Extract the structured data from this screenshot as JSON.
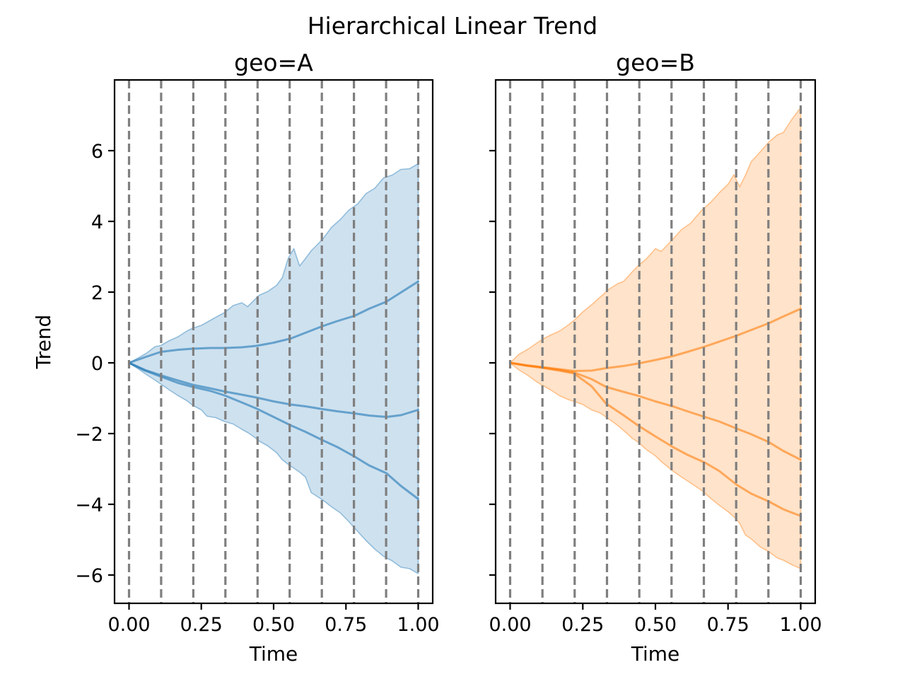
{
  "figure": {
    "title": "Hierarchical Linear Trend",
    "background": "#ffffff"
  },
  "axes": {
    "xlabel": "Time",
    "ylabel": "Trend",
    "x_tick_labels": [
      "0.00",
      "0.25",
      "0.50",
      "0.75",
      "1.00"
    ],
    "x_tick_values": [
      0,
      0.25,
      0.5,
      0.75,
      1
    ],
    "y_tick_labels": [
      "6",
      "4",
      "2",
      "0",
      "−2",
      "−4",
      "−6"
    ],
    "y_tick_values": [
      6,
      4,
      2,
      0,
      -2,
      -4,
      -6
    ],
    "xlim": [
      -0.05,
      1.05
    ],
    "ylim": [
      -6.8,
      8.0
    ],
    "changepoints": [
      0,
      0.1111,
      0.2222,
      0.3333,
      0.4444,
      0.5556,
      0.6667,
      0.7778,
      0.8889,
      1.0
    ],
    "grid_on": true,
    "grid_style": "dashed",
    "grid_color": "#7f7f7f",
    "spine_color": "#000000",
    "text_color": "#000000",
    "legend": "none"
  },
  "chart_data": [
    {
      "type": "area+line",
      "geo": "a",
      "title": "geo=A",
      "color": "#1f77b4",
      "fill_alpha": 0.22,
      "line_alpha": 0.6,
      "band": {
        "x": [
          0,
          0.03,
          0.06,
          0.09,
          0.11,
          0.14,
          0.17,
          0.2,
          0.22,
          0.25,
          0.27,
          0.3,
          0.33,
          0.36,
          0.39,
          0.41,
          0.43,
          0.45,
          0.48,
          0.51,
          0.53,
          0.55,
          0.57,
          0.59,
          0.61,
          0.63,
          0.67,
          0.7,
          0.73,
          0.76,
          0.79,
          0.82,
          0.85,
          0.88,
          0.91,
          0.94,
          0.97,
          1.0
        ],
        "upper": [
          0,
          0.13,
          0.27,
          0.46,
          0.49,
          0.63,
          0.74,
          0.9,
          0.98,
          1.06,
          1.15,
          1.29,
          1.42,
          1.62,
          1.7,
          1.59,
          1.75,
          1.91,
          2.02,
          2.19,
          2.41,
          2.95,
          3.23,
          2.74,
          2.95,
          3.17,
          3.5,
          3.83,
          4.05,
          4.32,
          4.49,
          4.79,
          4.94,
          5.23,
          5.31,
          5.47,
          5.49,
          5.63
        ],
        "lower": [
          0,
          -0.16,
          -0.33,
          -0.49,
          -0.6,
          -0.77,
          -0.93,
          -1.07,
          -1.2,
          -1.33,
          -1.51,
          -1.55,
          -1.66,
          -1.73,
          -1.88,
          -1.97,
          -2.08,
          -2.21,
          -2.35,
          -2.54,
          -2.74,
          -2.87,
          -2.98,
          -3.09,
          -3.23,
          -3.67,
          -3.88,
          -4.07,
          -4.24,
          -4.49,
          -4.76,
          -5.03,
          -5.27,
          -5.47,
          -5.6,
          -5.78,
          -5.82,
          -5.96
        ]
      },
      "lines": [
        {
          "name": "trend-draw-1",
          "x": [
            0,
            0.055,
            0.11,
            0.17,
            0.22,
            0.28,
            0.33,
            0.39,
            0.44,
            0.5,
            0.56,
            0.61,
            0.67,
            0.72,
            0.78,
            0.83,
            0.89,
            0.94,
            1.0
          ],
          "y": [
            0,
            0.16,
            0.31,
            0.37,
            0.4,
            0.42,
            0.42,
            0.44,
            0.48,
            0.57,
            0.69,
            0.85,
            1.04,
            1.18,
            1.33,
            1.53,
            1.73,
            1.99,
            2.3
          ]
        },
        {
          "name": "trend-draw-2",
          "x": [
            0,
            0.055,
            0.11,
            0.17,
            0.22,
            0.28,
            0.33,
            0.39,
            0.44,
            0.5,
            0.56,
            0.61,
            0.67,
            0.72,
            0.78,
            0.83,
            0.89,
            0.94,
            1.0
          ],
          "y": [
            0,
            -0.2,
            -0.35,
            -0.5,
            -0.62,
            -0.72,
            -0.81,
            -0.9,
            -0.98,
            -1.09,
            -1.18,
            -1.23,
            -1.31,
            -1.37,
            -1.43,
            -1.49,
            -1.53,
            -1.48,
            -1.33
          ]
        },
        {
          "name": "trend-draw-3",
          "x": [
            0,
            0.055,
            0.11,
            0.17,
            0.22,
            0.28,
            0.33,
            0.39,
            0.44,
            0.5,
            0.56,
            0.61,
            0.67,
            0.72,
            0.78,
            0.83,
            0.89,
            0.94,
            1.0
          ],
          "y": [
            0,
            -0.22,
            -0.39,
            -0.57,
            -0.68,
            -0.79,
            -0.92,
            -1.12,
            -1.29,
            -1.53,
            -1.77,
            -1.95,
            -2.19,
            -2.38,
            -2.65,
            -2.9,
            -3.12,
            -3.48,
            -3.85
          ]
        }
      ]
    },
    {
      "type": "area+line",
      "geo": "b",
      "title": "geo=B",
      "color": "#ff7f0e",
      "fill_alpha": 0.22,
      "line_alpha": 0.6,
      "band": {
        "x": [
          0,
          0.03,
          0.06,
          0.09,
          0.11,
          0.14,
          0.17,
          0.2,
          0.22,
          0.25,
          0.28,
          0.31,
          0.34,
          0.37,
          0.39,
          0.42,
          0.44,
          0.47,
          0.5,
          0.52,
          0.56,
          0.59,
          0.62,
          0.66,
          0.69,
          0.72,
          0.75,
          0.77,
          0.79,
          0.81,
          0.83,
          0.86,
          0.89,
          0.92,
          0.94,
          0.97,
          1.0
        ],
        "upper": [
          0,
          0.24,
          0.38,
          0.55,
          0.66,
          0.79,
          0.9,
          1.07,
          1.2,
          1.44,
          1.64,
          1.86,
          2.08,
          2.24,
          2.3,
          2.57,
          2.74,
          2.95,
          3.23,
          3.15,
          3.5,
          3.77,
          3.94,
          4.32,
          4.54,
          4.81,
          5.05,
          5.32,
          4.98,
          5.31,
          5.69,
          5.96,
          6.24,
          6.45,
          6.51,
          6.89,
          7.22
        ],
        "lower": [
          0,
          -0.2,
          -0.35,
          -0.53,
          -0.63,
          -0.77,
          -0.93,
          -1.04,
          -1.09,
          -1.18,
          -1.33,
          -1.42,
          -1.59,
          -1.77,
          -1.91,
          -2.13,
          -2.24,
          -2.46,
          -2.63,
          -2.79,
          -3.06,
          -3.23,
          -3.39,
          -3.61,
          -3.83,
          -4.03,
          -4.21,
          -4.35,
          -4.54,
          -4.87,
          -4.98,
          -5.2,
          -5.34,
          -5.52,
          -5.58,
          -5.71,
          -5.82
        ]
      },
      "lines": [
        {
          "name": "trend-draw-1",
          "x": [
            0,
            0.055,
            0.11,
            0.17,
            0.22,
            0.28,
            0.33,
            0.39,
            0.44,
            0.5,
            0.56,
            0.61,
            0.67,
            0.72,
            0.78,
            0.83,
            0.89,
            0.94,
            1.0
          ],
          "y": [
            0,
            -0.07,
            -0.12,
            -0.18,
            -0.23,
            -0.22,
            -0.15,
            -0.09,
            -0.02,
            0.08,
            0.19,
            0.31,
            0.46,
            0.6,
            0.77,
            0.93,
            1.12,
            1.31,
            1.53
          ]
        },
        {
          "name": "trend-draw-2",
          "x": [
            0,
            0.055,
            0.11,
            0.17,
            0.22,
            0.28,
            0.33,
            0.39,
            0.44,
            0.5,
            0.56,
            0.61,
            0.67,
            0.72,
            0.78,
            0.83,
            0.89,
            0.94,
            1.0
          ],
          "y": [
            0,
            -0.07,
            -0.13,
            -0.2,
            -0.27,
            -0.46,
            -0.68,
            -0.82,
            -0.93,
            -1.09,
            -1.23,
            -1.37,
            -1.53,
            -1.66,
            -1.86,
            -2.02,
            -2.24,
            -2.49,
            -2.74
          ]
        },
        {
          "name": "trend-draw-3",
          "x": [
            0,
            0.055,
            0.11,
            0.17,
            0.22,
            0.28,
            0.33,
            0.39,
            0.44,
            0.5,
            0.56,
            0.61,
            0.67,
            0.72,
            0.78,
            0.83,
            0.89,
            0.94,
            1.0
          ],
          "y": [
            0,
            -0.08,
            -0.14,
            -0.22,
            -0.3,
            -0.66,
            -1.15,
            -1.48,
            -1.77,
            -2.08,
            -2.38,
            -2.6,
            -2.82,
            -3.06,
            -3.45,
            -3.7,
            -3.92,
            -4.14,
            -4.33
          ]
        }
      ]
    }
  ]
}
